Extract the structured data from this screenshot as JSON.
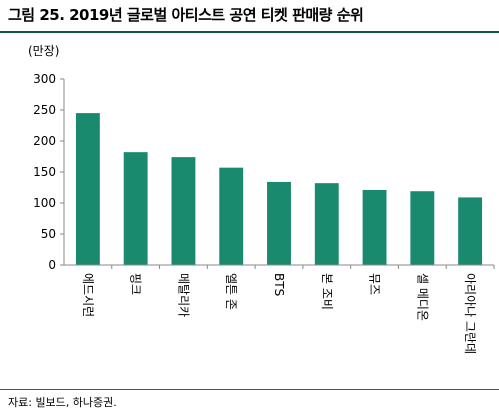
{
  "title": "그림 25. 2019년 글로벌 아티스트 공연 티켓 판매량 순위",
  "source": "자료: 빌보드, 하나증권.",
  "colors": {
    "bar": "#1a8a6e",
    "rule": "#0b5c3f",
    "axis": "#888888"
  },
  "chart_data": {
    "type": "bar",
    "title": "",
    "xlabel": "",
    "ylabel": "(만장)",
    "ylim": [
      0,
      300
    ],
    "yticks": [
      0,
      50,
      100,
      150,
      200,
      250,
      300
    ],
    "grid": false,
    "categories": [
      "에드시런",
      "핑크",
      "메탈리카",
      "엘튼 존",
      "BTS",
      "본 조비",
      "뮤즈",
      "셀 메디온",
      "아리아나 그란데"
    ],
    "values": [
      245,
      182,
      174,
      157,
      134,
      132,
      121,
      119,
      109
    ]
  }
}
